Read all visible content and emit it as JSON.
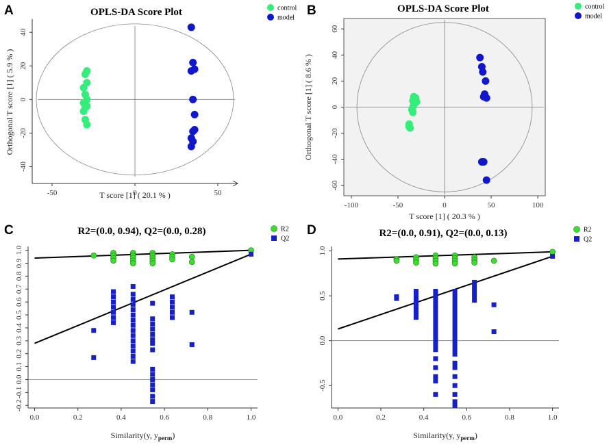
{
  "colors": {
    "control": "#33ee7a",
    "model": "#1118cc",
    "r2": "#39e02d",
    "q2": "#1620c8",
    "panel_bg": "#f2f2f2"
  },
  "chart_data": [
    {
      "panel": "A",
      "type": "scatter",
      "title": "OPLS-DA Score Plot",
      "xlabel": "T score [1] ( 20.1 % )",
      "ylabel": "Orthogonal T score [1] ( 5.9 % )",
      "xlim": [
        -62,
        62
      ],
      "ylim": [
        -50,
        47
      ],
      "xticks": [
        -50,
        0,
        50
      ],
      "yticks": [
        -40,
        -20,
        0,
        20,
        40
      ],
      "ellipse": {
        "rx": 59.5,
        "ry": 45
      },
      "legend": [
        "control",
        "model"
      ],
      "series": [
        {
          "name": "control",
          "points": [
            [
              -29,
              17
            ],
            [
              -30,
              15
            ],
            [
              -29,
              10
            ],
            [
              -31,
              7
            ],
            [
              -30,
              3
            ],
            [
              -29,
              0
            ],
            [
              -31,
              -2
            ],
            [
              -29,
              -4
            ],
            [
              -30,
              -5
            ],
            [
              -31,
              -7
            ],
            [
              -30,
              -12
            ],
            [
              -29,
              -15
            ]
          ]
        },
        {
          "name": "model",
          "points": [
            [
              34,
              43
            ],
            [
              35,
              22
            ],
            [
              36,
              18
            ],
            [
              34,
              17
            ],
            [
              35,
              0
            ],
            [
              36,
              -9
            ],
            [
              36,
              -18
            ],
            [
              35,
              -19
            ],
            [
              34,
              -23
            ],
            [
              35,
              -25
            ],
            [
              34,
              -28
            ]
          ]
        }
      ]
    },
    {
      "panel": "B",
      "type": "scatter",
      "title": "OPLS-DA Score Plot",
      "xlabel": "T score [1] ( 20.3 % )",
      "ylabel": "Orthogonal T score [1] ( 8.6 % )",
      "xlim": [
        -108,
        108
      ],
      "ylim": [
        -68,
        68
      ],
      "xticks": [
        -100,
        -50,
        0,
        50,
        100
      ],
      "yticks": [
        -60,
        -40,
        -20,
        0,
        20,
        40,
        60
      ],
      "ellipse": {
        "rx": 94,
        "ry": 65
      },
      "legend": [
        "control",
        "model"
      ],
      "series": [
        {
          "name": "control",
          "points": [
            [
              -33,
              8
            ],
            [
              -31,
              7
            ],
            [
              -34,
              5
            ],
            [
              -30,
              4
            ],
            [
              -33,
              2
            ],
            [
              -34,
              0
            ],
            [
              -35,
              -2
            ],
            [
              -34,
              -4
            ],
            [
              -38,
              -13
            ],
            [
              -38,
              -15
            ],
            [
              -37,
              -16
            ]
          ]
        },
        {
          "name": "model",
          "points": [
            [
              38,
              38
            ],
            [
              40,
              31
            ],
            [
              41,
              27
            ],
            [
              44,
              20
            ],
            [
              43,
              10
            ],
            [
              42,
              8
            ],
            [
              45,
              7
            ],
            [
              40,
              -42
            ],
            [
              42,
              -42
            ],
            [
              45,
              -56
            ]
          ]
        }
      ]
    },
    {
      "panel": "C",
      "type": "scatter",
      "title": "R2=(0.0, 0.94), Q2=(0.0, 0.28)",
      "xlabel": "Similarity(y, y",
      "xlabel_sub": "perm",
      "xlabel_end": ")",
      "ylabel": "",
      "xlim": [
        -0.03,
        1.03
      ],
      "ylim": [
        -0.22,
        1.03
      ],
      "xticks": [
        0.0,
        0.2,
        0.4,
        0.6,
        0.8,
        1.0
      ],
      "yticks": [
        -0.2,
        -0.1,
        0.0,
        0.1,
        0.2,
        0.3,
        0.4,
        0.5,
        0.6,
        0.7,
        0.8,
        0.9,
        1.0
      ],
      "legend": [
        "R2",
        "Q2"
      ],
      "r2_line": [
        [
          0.0,
          0.94
        ],
        [
          1.0,
          1.0
        ]
      ],
      "q2_line": [
        [
          0.0,
          0.28
        ],
        [
          1.0,
          0.97
        ]
      ],
      "series": [
        {
          "name": "R2",
          "points": [
            [
              0.273,
              0.96
            ],
            [
              0.364,
              0.98
            ],
            [
              0.364,
              0.96
            ],
            [
              0.364,
              0.94
            ],
            [
              0.364,
              0.92
            ],
            [
              0.455,
              0.98
            ],
            [
              0.455,
              0.96
            ],
            [
              0.455,
              0.94
            ],
            [
              0.455,
              0.92
            ],
            [
              0.455,
              0.9
            ],
            [
              0.545,
              0.98
            ],
            [
              0.545,
              0.96
            ],
            [
              0.545,
              0.94
            ],
            [
              0.545,
              0.92
            ],
            [
              0.545,
              0.9
            ],
            [
              0.636,
              0.97
            ],
            [
              0.636,
              0.95
            ],
            [
              0.636,
              0.93
            ],
            [
              0.727,
              0.95
            ],
            [
              0.727,
              0.91
            ],
            [
              1.0,
              1.0
            ]
          ]
        },
        {
          "name": "Q2",
          "points": [
            [
              0.273,
              0.38
            ],
            [
              0.273,
              0.17
            ],
            [
              0.364,
              0.68
            ],
            [
              0.364,
              0.64
            ],
            [
              0.364,
              0.6
            ],
            [
              0.364,
              0.56
            ],
            [
              0.364,
              0.52
            ],
            [
              0.364,
              0.48
            ],
            [
              0.364,
              0.44
            ],
            [
              0.455,
              0.72
            ],
            [
              0.455,
              0.66
            ],
            [
              0.455,
              0.62
            ],
            [
              0.455,
              0.58
            ],
            [
              0.455,
              0.54
            ],
            [
              0.455,
              0.5
            ],
            [
              0.455,
              0.46
            ],
            [
              0.455,
              0.42
            ],
            [
              0.455,
              0.38
            ],
            [
              0.455,
              0.34
            ],
            [
              0.455,
              0.3
            ],
            [
              0.455,
              0.26
            ],
            [
              0.455,
              0.22
            ],
            [
              0.455,
              0.18
            ],
            [
              0.455,
              0.14
            ],
            [
              0.545,
              0.59
            ],
            [
              0.545,
              0.47
            ],
            [
              0.545,
              0.43
            ],
            [
              0.545,
              0.39
            ],
            [
              0.545,
              0.35
            ],
            [
              0.545,
              0.31
            ],
            [
              0.545,
              0.28
            ],
            [
              0.545,
              0.23
            ],
            [
              0.545,
              0.08
            ],
            [
              0.545,
              0.04
            ],
            [
              0.545,
              0.0
            ],
            [
              0.545,
              -0.04
            ],
            [
              0.545,
              -0.08
            ],
            [
              0.545,
              -0.13
            ],
            [
              0.545,
              -0.17
            ],
            [
              0.636,
              0.64
            ],
            [
              0.636,
              0.6
            ],
            [
              0.636,
              0.56
            ],
            [
              0.636,
              0.52
            ],
            [
              0.636,
              0.48
            ],
            [
              0.727,
              0.52
            ],
            [
              0.727,
              0.27
            ],
            [
              1.0,
              0.97
            ]
          ]
        }
      ]
    },
    {
      "panel": "D",
      "type": "scatter",
      "title": "R2=(0.0, 0.91), Q2=(0.0, 0.13)",
      "xlabel": "Similarity(y, y",
      "xlabel_sub": "perm",
      "xlabel_end": ")",
      "ylabel": "",
      "xlim": [
        -0.03,
        1.03
      ],
      "ylim": [
        -0.75,
        1.05
      ],
      "xticks": [
        0.0,
        0.2,
        0.4,
        0.6,
        0.8,
        1.0
      ],
      "yticks": [
        -0.5,
        0.0,
        0.5,
        1.0
      ],
      "legend": [
        "R2",
        "Q2"
      ],
      "r2_line": [
        [
          0.0,
          0.91
        ],
        [
          1.0,
          0.99
        ]
      ],
      "q2_line": [
        [
          0.0,
          0.13
        ],
        [
          1.0,
          0.94
        ]
      ],
      "series": [
        {
          "name": "R2",
          "points": [
            [
              0.273,
              0.91
            ],
            [
              0.273,
              0.89
            ],
            [
              0.364,
              0.93
            ],
            [
              0.364,
              0.9
            ],
            [
              0.364,
              0.87
            ],
            [
              0.455,
              0.95
            ],
            [
              0.455,
              0.92
            ],
            [
              0.455,
              0.89
            ],
            [
              0.455,
              0.86
            ],
            [
              0.545,
              0.95
            ],
            [
              0.545,
              0.92
            ],
            [
              0.545,
              0.89
            ],
            [
              0.545,
              0.86
            ],
            [
              0.636,
              0.93
            ],
            [
              0.636,
              0.9
            ],
            [
              0.636,
              0.87
            ],
            [
              0.727,
              0.89
            ],
            [
              1.0,
              0.99
            ]
          ]
        },
        {
          "name": "Q2",
          "points": [
            [
              0.273,
              0.49
            ],
            [
              0.273,
              0.47
            ],
            [
              0.364,
              0.55
            ],
            [
              0.364,
              0.5
            ],
            [
              0.364,
              0.46
            ],
            [
              0.364,
              0.42
            ],
            [
              0.364,
              0.38
            ],
            [
              0.364,
              0.34
            ],
            [
              0.364,
              0.3
            ],
            [
              0.364,
              0.26
            ],
            [
              0.455,
              0.55
            ],
            [
              0.455,
              0.5
            ],
            [
              0.455,
              0.45
            ],
            [
              0.455,
              0.4
            ],
            [
              0.455,
              0.35
            ],
            [
              0.455,
              0.3
            ],
            [
              0.455,
              0.25
            ],
            [
              0.455,
              0.2
            ],
            [
              0.455,
              0.15
            ],
            [
              0.455,
              0.1
            ],
            [
              0.455,
              0.05
            ],
            [
              0.455,
              0.0
            ],
            [
              0.455,
              -0.05
            ],
            [
              0.455,
              -0.1
            ],
            [
              0.455,
              -0.2
            ],
            [
              0.455,
              -0.3
            ],
            [
              0.455,
              -0.4
            ],
            [
              0.455,
              -0.45
            ],
            [
              0.455,
              -0.6
            ],
            [
              0.545,
              0.55
            ],
            [
              0.545,
              0.5
            ],
            [
              0.545,
              0.45
            ],
            [
              0.545,
              0.4
            ],
            [
              0.545,
              0.35
            ],
            [
              0.545,
              0.3
            ],
            [
              0.545,
              0.25
            ],
            [
              0.545,
              0.2
            ],
            [
              0.545,
              0.15
            ],
            [
              0.545,
              0.1
            ],
            [
              0.545,
              0.05
            ],
            [
              0.545,
              0.0
            ],
            [
              0.545,
              -0.05
            ],
            [
              0.545,
              -0.1
            ],
            [
              0.545,
              -0.15
            ],
            [
              0.545,
              -0.25
            ],
            [
              0.545,
              -0.3
            ],
            [
              0.545,
              -0.4
            ],
            [
              0.545,
              -0.5
            ],
            [
              0.545,
              -0.6
            ],
            [
              0.545,
              -0.68
            ],
            [
              0.545,
              -0.72
            ],
            [
              0.636,
              0.65
            ],
            [
              0.636,
              0.6
            ],
            [
              0.636,
              0.55
            ],
            [
              0.636,
              0.5
            ],
            [
              0.636,
              0.45
            ],
            [
              0.727,
              0.4
            ],
            [
              0.727,
              0.1
            ],
            [
              1.0,
              0.94
            ]
          ]
        }
      ]
    }
  ]
}
